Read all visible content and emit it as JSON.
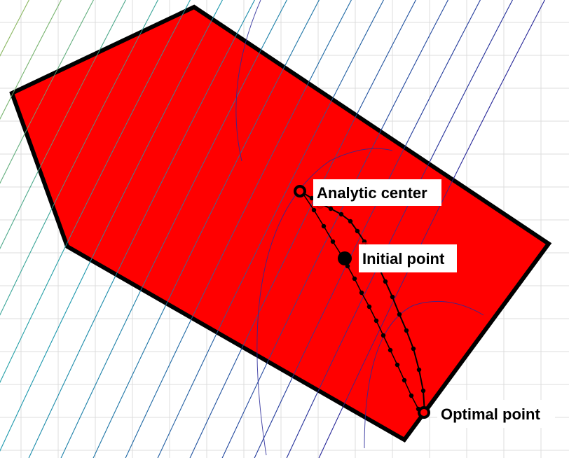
{
  "colors": {
    "region": "#ff0000",
    "region_edge": "#000000",
    "path": "#000000",
    "grid": "#dcdcdc",
    "contour_low": "#2a2a9a",
    "contour_mid": "#21a0b0",
    "contour_high": "#f0d020"
  },
  "labels": {
    "analytic_center": "Analytic center",
    "initial_point": "Initial point",
    "optimal_point": "Optimal point"
  },
  "path": {
    "marker": "dot",
    "series": [
      {
        "from": "analytic_center",
        "to": "optimal_point",
        "color": "#000000"
      },
      {
        "from": "initial_point",
        "to": "optimal_point",
        "color": "#000000"
      }
    ]
  }
}
